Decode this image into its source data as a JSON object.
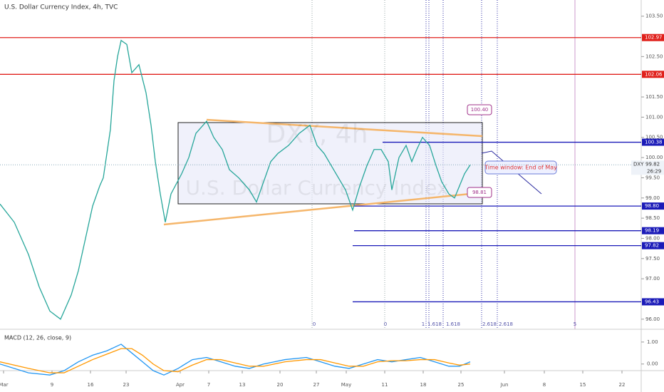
{
  "chart_data": {
    "type": "line",
    "title": "U.S. Dollar Currency Index, 4h, TVC",
    "watermark": {
      "symbol": "DXY, 4h",
      "name": "U.S. Dollar Currency Index"
    },
    "x": [
      0,
      20,
      40,
      55,
      70,
      85,
      100,
      110,
      120,
      130,
      140,
      145,
      155,
      160,
      165,
      170,
      178,
      185,
      195,
      205,
      212,
      218,
      225,
      232,
      240,
      255,
      265,
      275,
      290,
      300,
      312,
      322,
      335,
      350,
      360,
      370,
      380,
      390,
      405,
      420,
      435,
      445,
      455,
      465,
      475,
      485,
      495,
      505,
      515,
      525,
      535,
      545,
      550,
      560,
      570,
      578,
      585,
      593,
      603,
      612,
      620,
      630,
      638,
      645,
      652,
      660
    ],
    "series": [
      {
        "name": "DXY",
        "color": "#26a69a",
        "values": [
          98.85,
          98.4,
          97.6,
          96.8,
          96.2,
          96.0,
          96.6,
          97.2,
          98.0,
          98.8,
          99.3,
          99.5,
          100.7,
          101.9,
          102.5,
          102.9,
          102.8,
          102.1,
          102.3,
          101.6,
          100.8,
          99.9,
          99.1,
          98.4,
          99.1,
          99.6,
          100.0,
          100.6,
          100.9,
          100.5,
          100.2,
          99.7,
          99.5,
          99.2,
          98.9,
          99.4,
          99.9,
          100.1,
          100.3,
          100.6,
          100.8,
          100.3,
          100.1,
          99.8,
          99.5,
          99.2,
          98.7,
          99.3,
          99.8,
          100.2,
          100.2,
          99.9,
          99.2,
          100.0,
          100.3,
          99.9,
          100.2,
          100.5,
          100.3,
          99.8,
          99.4,
          99.1,
          99.0,
          99.3,
          99.6,
          99.82
        ]
      }
    ],
    "xlim": [
      0,
      900
    ],
    "xticks": [
      {
        "value": 5,
        "label": "Mar"
      },
      {
        "value": 73,
        "label": "9"
      },
      {
        "value": 127,
        "label": "16"
      },
      {
        "value": 177,
        "label": "23"
      },
      {
        "value": 253,
        "label": "Apr"
      },
      {
        "value": 293,
        "label": "7"
      },
      {
        "value": 340,
        "label": "13"
      },
      {
        "value": 393,
        "label": "20"
      },
      {
        "value": 444,
        "label": "27"
      },
      {
        "value": 486,
        "label": "May"
      },
      {
        "value": 540,
        "label": "11"
      },
      {
        "value": 594,
        "label": "18"
      },
      {
        "value": 647,
        "label": "25"
      },
      {
        "value": 708,
        "label": "Jun"
      },
      {
        "value": 764,
        "label": "8"
      },
      {
        "value": 818,
        "label": "15"
      },
      {
        "value": 873,
        "label": "22"
      }
    ],
    "ylim": [
      95.75,
      103.9
    ],
    "yticks": [
      {
        "value": 103.5,
        "label": "103.50"
      },
      {
        "value": 102.5,
        "label": "102.50"
      },
      {
        "value": 101.5,
        "label": "101.50"
      },
      {
        "value": 101,
        "label": "101.00"
      },
      {
        "value": 100.5,
        "label": "100.50"
      },
      {
        "value": 100,
        "label": "100.00"
      },
      {
        "value": 99.5,
        "label": "99.50"
      },
      {
        "value": 99,
        "label": "99.00"
      },
      {
        "value": 98.5,
        "label": "98.50"
      },
      {
        "value": 98,
        "label": "98.00"
      },
      {
        "value": 97.5,
        "label": "97.50"
      },
      {
        "value": 97,
        "label": "97.00"
      },
      {
        "value": 96,
        "label": "96.00"
      }
    ],
    "levels": [
      {
        "value": 102.97,
        "color": "#e0201b"
      },
      {
        "value": 102.06,
        "color": "#e0201b"
      },
      {
        "value": 100.38,
        "color": "#1a1ab8"
      },
      {
        "value": {
          "value": 98.8,
          "label": "98.80"
        },
        "color": "#1a1ab8"
      },
      {
        "value": 98.19,
        "color": "#1a1ab8"
      },
      {
        "value": 97.82,
        "color": "#1a1ab8"
      },
      {
        "value": 96.43,
        "color": "#1a1ab8"
      }
    ],
    "last": {
      "symbol": "DXY",
      "value": 99.82,
      "countdown": "26:29"
    },
    "callouts": [
      {
        "value": 100.4,
        "label": "100.40"
      },
      {
        "value": 98.81,
        "label": "98.81"
      }
    ],
    "note": "Time window: End of May",
    "fib_labels": [
      "0",
      "0",
      "1",
      "1.618",
      "1.618",
      "2.618",
      "2.618",
      "5"
    ],
    "macd": {
      "title": "MACD (12, 26, close, 9)",
      "ylim": [
        -0.3,
        1.45
      ],
      "yticks": [
        {
          "value": 1,
          "label": "1.00"
        },
        {
          "value": 0,
          "label": "0.00"
        }
      ],
      "x": [
        0,
        40,
        70,
        90,
        110,
        130,
        150,
        170,
        185,
        200,
        215,
        230,
        250,
        270,
        290,
        310,
        330,
        350,
        370,
        400,
        430,
        450,
        470,
        490,
        510,
        530,
        550,
        570,
        590,
        610,
        630,
        645,
        660
      ],
      "series": [
        {
          "name": "MACD",
          "color": "#2196f3",
          "values": [
            0.0,
            -0.4,
            -0.5,
            -0.3,
            0.1,
            0.4,
            0.6,
            0.9,
            0.5,
            0.1,
            -0.3,
            -0.5,
            -0.2,
            0.2,
            0.3,
            0.1,
            -0.1,
            -0.2,
            0.0,
            0.2,
            0.3,
            0.1,
            -0.1,
            -0.2,
            0.0,
            0.2,
            0.1,
            0.2,
            0.3,
            0.1,
            -0.1,
            -0.1,
            0.1
          ]
        },
        {
          "name": "Signal",
          "color": "#ff9800",
          "values": [
            0.1,
            -0.2,
            -0.4,
            -0.4,
            -0.1,
            0.2,
            0.45,
            0.7,
            0.7,
            0.4,
            0.0,
            -0.3,
            -0.35,
            -0.05,
            0.2,
            0.2,
            0.05,
            -0.1,
            -0.1,
            0.1,
            0.2,
            0.2,
            0.05,
            -0.1,
            -0.1,
            0.1,
            0.15,
            0.15,
            0.2,
            0.2,
            0.05,
            -0.05,
            0.0
          ]
        }
      ]
    }
  }
}
